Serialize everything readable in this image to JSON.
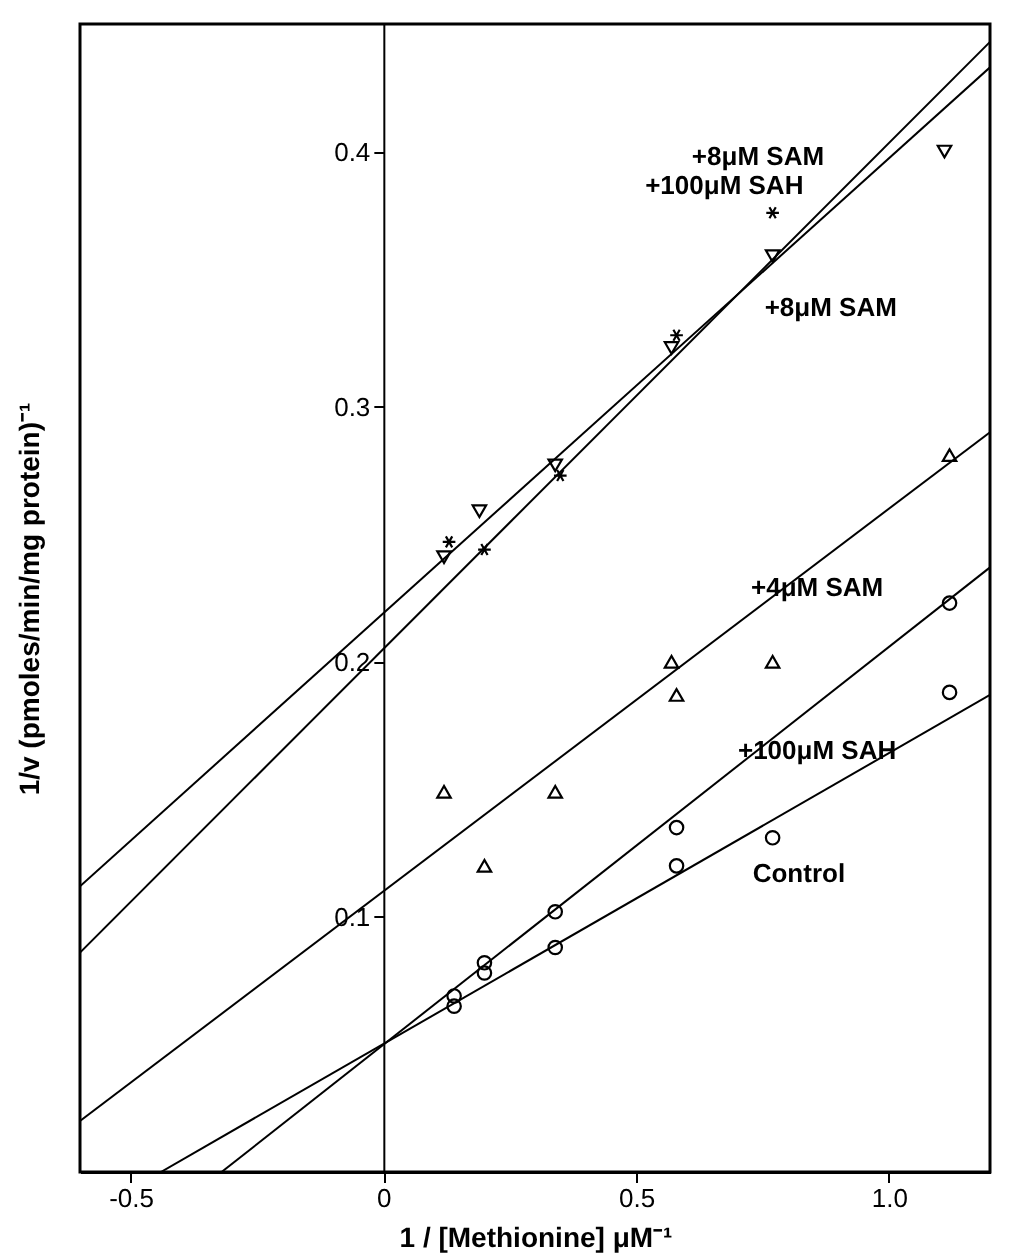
{
  "chart_data": {
    "type": "scatter",
    "xlabel": "1 / [Methionine] μM⁻¹",
    "ylabel": "1/v (pmoles/min/mg protein)⁻¹",
    "xlim": [
      -0.6,
      1.2
    ],
    "ylim": [
      0,
      0.45
    ],
    "xticks": [
      -0.5,
      0,
      0.5,
      {
        "value": 1,
        "label": "1.0"
      }
    ],
    "yticks": [
      0.1,
      0.2,
      0.3,
      0.4
    ],
    "grid": false,
    "series": [
      {
        "type": "scatter",
        "marker": "circle",
        "color": "#000000",
        "x": [
          0.14,
          0.2,
          0.34,
          0.58,
          0.77,
          1.12
        ],
        "values": [
          0.069,
          0.078,
          0.088,
          0.12,
          0.131,
          0.188
        ]
      },
      {
        "type": "scatter",
        "marker": "circle",
        "color": "#000000",
        "x": [
          0.14,
          0.2,
          0.34,
          0.58,
          1.12
        ],
        "values": [
          0.065,
          0.082,
          0.102,
          0.135,
          0.223
        ]
      },
      {
        "type": "scatter",
        "marker": "triangle",
        "color": "#000000",
        "x": [
          0.12,
          0.2,
          0.34,
          0.57,
          0.58,
          0.77,
          1.12
        ],
        "values": [
          0.149,
          0.12,
          0.149,
          0.2,
          0.187,
          0.2,
          0.281
        ]
      },
      {
        "type": "scatter",
        "marker": "triangle-down",
        "color": "#000000",
        "x": [
          0.12,
          0.19,
          0.34,
          0.57,
          0.77,
          1.11
        ],
        "values": [
          0.241,
          0.259,
          0.277,
          0.323,
          0.359,
          0.4
        ]
      },
      {
        "type": "scatter",
        "marker": "cross",
        "color": "#000000",
        "x": [
          0.13,
          0.2,
          0.35,
          0.58,
          0.77
        ],
        "values": [
          0.247,
          0.244,
          0.273,
          0.328,
          0.376
        ]
      },
      {
        "type": "line",
        "color": "#000000",
        "x": [
          -0.44,
          1.2
        ],
        "values": [
          0,
          0.187
        ]
      },
      {
        "type": "line",
        "color": "#000000",
        "x": [
          -0.32,
          1.2
        ],
        "values": [
          0,
          0.237
        ]
      },
      {
        "type": "line",
        "color": "#000000",
        "x": [
          -0.6,
          1.2
        ],
        "values": [
          0.02,
          0.29
        ]
      },
      {
        "type": "line",
        "color": "#000000",
        "x": [
          -0.6,
          1.2
        ],
        "values": [
          0.112,
          0.433
        ]
      },
      {
        "type": "line",
        "color": "#000000",
        "x": [
          -0.6,
          1.2
        ],
        "values": [
          0.086,
          0.443
        ]
      }
    ],
    "annotations": [
      "+8μM SAM",
      "+100μM SAH",
      "+8μM SAM",
      "+4μM SAM",
      "+100μM SAH",
      "Control"
    ]
  }
}
